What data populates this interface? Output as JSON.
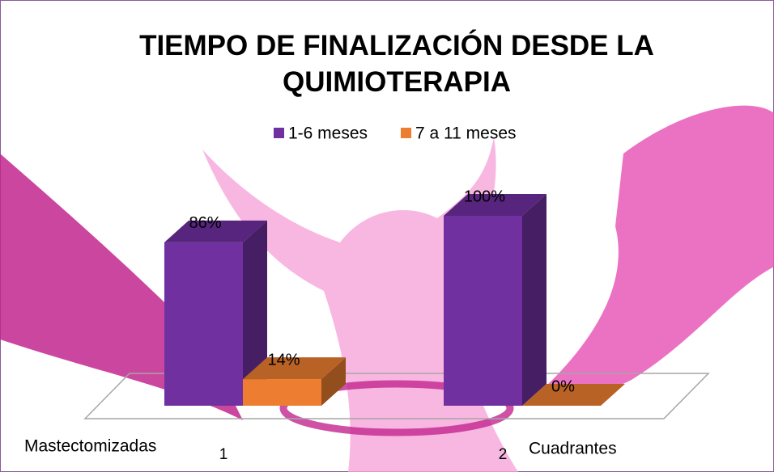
{
  "chart_data": {
    "type": "bar3d",
    "title": "TIEMPO DE FINALIZACIÓN DESDE LA QUIMIOTERAPIA",
    "categories": [
      "1",
      "2"
    ],
    "series": [
      {
        "name": "1-6 meses",
        "color": "#7030a0",
        "values": [
          86,
          100
        ],
        "value_labels": [
          "86%",
          "100%"
        ]
      },
      {
        "name": "7 a 11 meses",
        "color": "#ed7d31",
        "values": [
          14,
          0
        ],
        "value_labels": [
          "14%",
          "0%"
        ]
      }
    ],
    "annotations": [
      "Mastectomizadas",
      "Cuadrantes"
    ],
    "ylim": [
      0,
      100
    ],
    "legend": "top"
  }
}
